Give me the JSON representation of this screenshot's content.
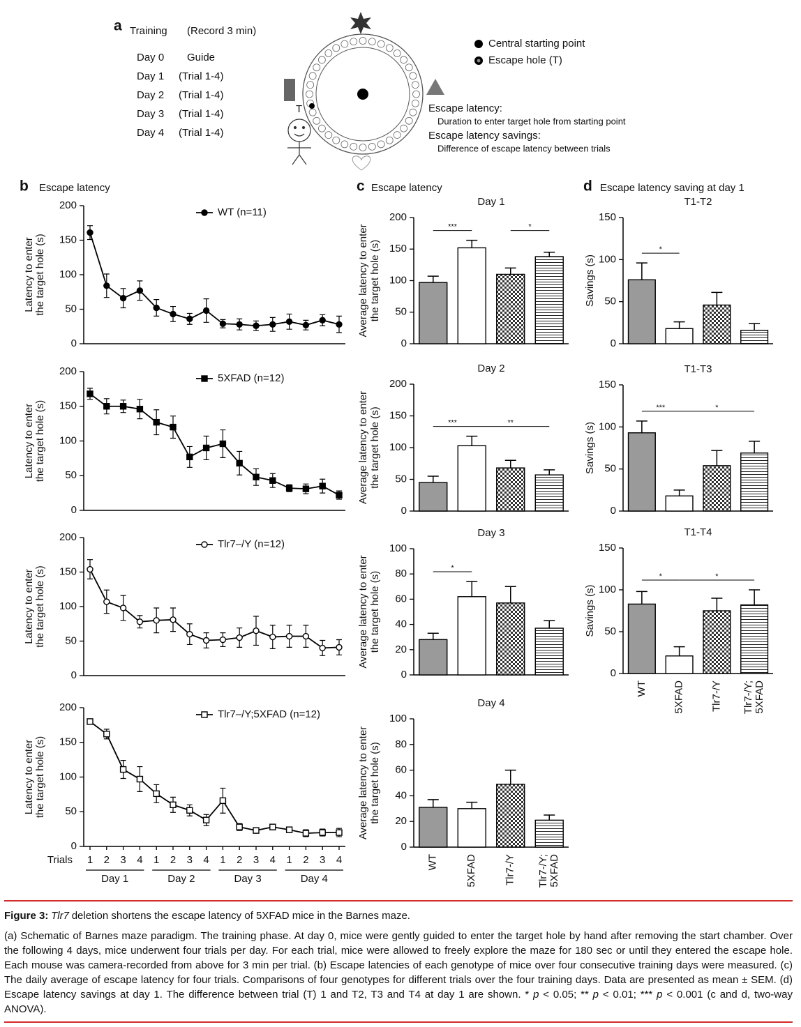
{
  "schematic": {
    "letter": "a",
    "training": "Training",
    "record": "(Record 3 min)",
    "schedule": [
      [
        "Day 0",
        "Guide"
      ],
      [
        "Day 1",
        "(Trial 1-4)"
      ],
      [
        "Day 2",
        "(Trial 1-4)"
      ],
      [
        "Day 3",
        "(Trial 1-4)"
      ],
      [
        "Day 4",
        "(Trial 1-4)"
      ]
    ],
    "target": "T",
    "legend": [
      "Central starting point",
      "Escape hole (T)"
    ],
    "definitions": [
      [
        "Escape latency:",
        "Duration to enter target hole from starting point"
      ],
      [
        "Escape latency savings:",
        "Difference of escape latency between trials"
      ]
    ]
  },
  "panels": [
    {
      "letter": "b",
      "title": "Escape latency"
    },
    {
      "letter": "c",
      "title": "Escape latency"
    },
    {
      "letter": "d",
      "title": "Escape latency saving at day 1"
    }
  ],
  "chart_data": [
    {
      "type": "line",
      "ylabel": [
        "Latency to enter",
        "the target hole (s)"
      ],
      "ylim": [
        0,
        200
      ],
      "yticks": [
        0,
        50,
        100,
        150,
        200
      ],
      "categories": [
        null,
        null,
        null,
        null,
        null,
        null,
        null,
        null,
        null,
        null,
        null,
        null,
        null,
        null,
        null,
        null
      ],
      "series": [
        {
          "name": "WT (n=11)",
          "color": "#000000",
          "marker": "circle",
          "marker_fill": "#000000",
          "values": [
            161,
            84,
            66,
            77,
            52,
            43,
            36,
            48,
            29,
            28,
            26,
            28,
            32,
            27,
            34,
            28
          ],
          "errors": [
            10,
            17,
            14,
            14,
            12,
            11,
            8,
            17,
            6,
            8,
            7,
            10,
            11,
            7,
            8,
            12
          ]
        }
      ]
    },
    {
      "type": "line",
      "ylabel": [
        "Latency to enter",
        "the target hole (s)"
      ],
      "ylim": [
        0,
        200
      ],
      "yticks": [
        0,
        50,
        100,
        150,
        200
      ],
      "categories": [
        null,
        null,
        null,
        null,
        null,
        null,
        null,
        null,
        null,
        null,
        null,
        null,
        null,
        null,
        null,
        null
      ],
      "series": [
        {
          "name": "5XFAD (n=12)",
          "color": "#000000",
          "marker": "square",
          "marker_fill": "#000000",
          "values": [
            168,
            150,
            150,
            146,
            127,
            120,
            77,
            90,
            96,
            68,
            48,
            43,
            32,
            31,
            35,
            22
          ],
          "errors": [
            8,
            11,
            9,
            14,
            18,
            16,
            15,
            17,
            20,
            17,
            12,
            10,
            5,
            7,
            10,
            6
          ]
        }
      ]
    },
    {
      "type": "line",
      "ylabel": [
        "Latency to enter",
        "the target hole (s)"
      ],
      "ylim": [
        0,
        200
      ],
      "yticks": [
        0,
        50,
        100,
        150,
        200
      ],
      "categories": [
        null,
        null,
        null,
        null,
        null,
        null,
        null,
        null,
        null,
        null,
        null,
        null,
        null,
        null,
        null,
        null
      ],
      "series": [
        {
          "name": "Tlr7–/Y (n=12)",
          "color": "#000000",
          "marker": "circle",
          "marker_fill": "#ffffff",
          "values": [
            154,
            107,
            98,
            78,
            80,
            81,
            60,
            51,
            52,
            55,
            65,
            56,
            57,
            57,
            40,
            41
          ],
          "errors": [
            14,
            17,
            18,
            9,
            18,
            17,
            15,
            11,
            10,
            14,
            21,
            17,
            16,
            16,
            11,
            11
          ]
        }
      ]
    },
    {
      "type": "line",
      "ylabel": [
        "Latency to enter",
        "the target hole (s)"
      ],
      "ylim": [
        0,
        200
      ],
      "yticks": [
        0,
        50,
        100,
        150,
        200
      ],
      "xlabel": "Trials",
      "categories": [
        "1",
        "2",
        "3",
        "4",
        "1",
        "2",
        "3",
        "4",
        "1",
        "2",
        "3",
        "4",
        "1",
        "2",
        "3",
        "4"
      ],
      "groups": [
        "Day 1",
        "Day 2",
        "Day 3",
        "Day 4"
      ],
      "series": [
        {
          "name": "Tlr7–/Y;5XFAD (n=12)",
          "color": "#000000",
          "marker": "square",
          "marker_fill": "#ffffff",
          "values": [
            180,
            162,
            111,
            97,
            76,
            60,
            52,
            38,
            66,
            28,
            23,
            28,
            24,
            19,
            20,
            20
          ],
          "errors": [
            2,
            7,
            13,
            18,
            13,
            11,
            8,
            8,
            18,
            5,
            3,
            4,
            4,
            5,
            5,
            6
          ]
        }
      ]
    },
    {
      "type": "bar",
      "title": "Day 1",
      "ylabel": [
        "Average latency to enter",
        "the target hole (s)"
      ],
      "ylim": [
        0,
        200
      ],
      "yticks": [
        0,
        50,
        100,
        150,
        200
      ],
      "categories": [
        null,
        null,
        null,
        null
      ],
      "fills": [
        "#9a9a9a",
        "#ffffff",
        "checker",
        "stripes"
      ],
      "values": [
        97,
        152,
        110,
        138
      ],
      "errors": [
        10,
        12,
        10,
        7
      ],
      "significance": [
        {
          "label": "***",
          "bars": [
            0,
            1
          ]
        },
        {
          "label": "*",
          "bars": [
            2,
            3
          ]
        }
      ]
    },
    {
      "type": "bar",
      "title": "Day 2",
      "ylabel": [
        "Average latency to enter",
        "the target hole (s)"
      ],
      "ylim": [
        0,
        200
      ],
      "yticks": [
        0,
        50,
        100,
        150,
        200
      ],
      "categories": [
        null,
        null,
        null,
        null
      ],
      "fills": [
        "#9a9a9a",
        "#ffffff",
        "checker",
        "stripes"
      ],
      "values": [
        45,
        103,
        68,
        57
      ],
      "errors": [
        10,
        15,
        12,
        8
      ],
      "significance": [
        {
          "label": "***",
          "bars": [
            0,
            1
          ]
        },
        {
          "label": "**",
          "bars": [
            1,
            3
          ]
        }
      ]
    },
    {
      "type": "bar",
      "title": "Day 3",
      "ylabel": [
        "Average latency to enter",
        "the target hole (s)"
      ],
      "ylim": [
        0,
        100
      ],
      "yticks": [
        0,
        20,
        40,
        60,
        80,
        100
      ],
      "categories": [
        null,
        null,
        null,
        null
      ],
      "fills": [
        "#9a9a9a",
        "#ffffff",
        "checker",
        "stripes"
      ],
      "values": [
        28,
        62,
        57,
        37
      ],
      "errors": [
        5,
        12,
        13,
        6
      ],
      "significance": [
        {
          "label": "*",
          "bars": [
            0,
            1
          ]
        }
      ]
    },
    {
      "type": "bar",
      "title": "Day 4",
      "ylabel": [
        "Average latency to enter",
        "the target hole (s)"
      ],
      "ylim": [
        0,
        100
      ],
      "yticks": [
        0,
        20,
        40,
        60,
        80,
        100
      ],
      "categories": [
        "WT",
        "5XFAD",
        "Tlr7-/Y",
        [
          "Tlr7-/Y;",
          "5XFAD"
        ]
      ],
      "fills": [
        "#9a9a9a",
        "#ffffff",
        "checker",
        "stripes"
      ],
      "values": [
        31,
        30,
        49,
        21
      ],
      "errors": [
        6,
        5,
        11,
        4
      ],
      "significance": []
    },
    {
      "type": "bar",
      "title": "T1-T2",
      "ylabel": [
        "Savings (s)"
      ],
      "ylim": [
        0,
        150
      ],
      "yticks": [
        0,
        50,
        100,
        150
      ],
      "categories": [
        null,
        null,
        null,
        null
      ],
      "fills": [
        "#9a9a9a",
        "#ffffff",
        "checker",
        "stripes"
      ],
      "values": [
        76,
        18,
        46,
        16
      ],
      "errors": [
        20,
        8,
        15,
        8
      ],
      "significance": [
        {
          "label": "*",
          "bars": [
            0,
            1
          ]
        }
      ]
    },
    {
      "type": "bar",
      "title": "T1-T3",
      "ylabel": [
        "Savings (s)"
      ],
      "ylim": [
        0,
        150
      ],
      "yticks": [
        0,
        50,
        100,
        150
      ],
      "categories": [
        null,
        null,
        null,
        null
      ],
      "fills": [
        "#9a9a9a",
        "#ffffff",
        "checker",
        "stripes"
      ],
      "values": [
        93,
        18,
        54,
        69
      ],
      "errors": [
        14,
        7,
        18,
        14
      ],
      "significance": [
        {
          "label": "***",
          "bars": [
            0,
            1
          ]
        },
        {
          "label": "*",
          "bars": [
            1,
            3
          ]
        }
      ]
    },
    {
      "type": "bar",
      "title": "T1-T4",
      "ylabel": [
        "Savings (s)"
      ],
      "ylim": [
        0,
        150
      ],
      "yticks": [
        0,
        50,
        100,
        150
      ],
      "categories": [
        "WT",
        "5XFAD",
        "Tlr7-/Y",
        [
          "Tlr7-/Y;",
          "5XFAD"
        ]
      ],
      "fills": [
        "#9a9a9a",
        "#ffffff",
        "checker",
        "stripes"
      ],
      "values": [
        83,
        21,
        75,
        82
      ],
      "errors": [
        15,
        11,
        15,
        18
      ],
      "significance": [
        {
          "label": "*",
          "bars": [
            0,
            1
          ]
        },
        {
          "label": "*",
          "bars": [
            1,
            3
          ]
        }
      ]
    }
  ],
  "caption": {
    "title": [
      {
        "text": "Figure 3:",
        "style": "bold"
      },
      {
        "text": "Tlr7",
        "style": "italic"
      },
      {
        "text": "deletion shortens the escape latency of 5XFAD mice in the Barnes maze."
      }
    ],
    "body": [
      {
        "text": "(a) Schematic of Barnes maze paradigm. The training phase. At day 0, mice were gently guided to enter the target hole by hand after removing the start chamber. Over the following 4 days, mice underwent four trials per day. For each trial, mice were allowed to freely explore the maze for 180 sec or until they entered the escape hole. Each mouse was camera-recorded from above for 3 min per trial. (b) Escape latencies of each genotype of mice over four consecutive training days were measured. (c) The daily average of escape latency for four trials. Comparisons of four genotypes for different trials over the four training days. Data are presented as mean ± SEM. (d) Escape latency savings at day 1. The difference between trial (T) 1 and T2, T3 and T4 at day 1 are shown. * "
      },
      {
        "text": "p",
        "style": "italic"
      },
      {
        "text": " < 0.05; ** "
      },
      {
        "text": "p",
        "style": "italic"
      },
      {
        "text": " < 0.01; *** "
      },
      {
        "text": "p",
        "style": "italic"
      },
      {
        "text": " < 0.001 (c and d, two-way ANOVA)."
      }
    ]
  }
}
